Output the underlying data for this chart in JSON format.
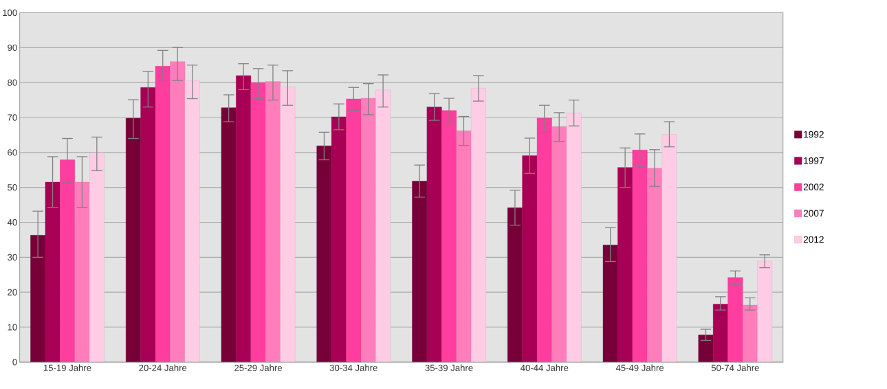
{
  "chart_data": {
    "type": "bar",
    "categories": [
      "15-19 Jahre",
      "20-24 Jahre",
      "25-29 Jahre",
      "30-34 Jahre",
      "35-39 Jahre",
      "40-44 Jahre",
      "45-49 Jahre",
      "50-74 Jahre"
    ],
    "series": [
      {
        "name": "1992",
        "color": "#780038",
        "values": [
          36.3,
          69.8,
          72.8,
          61.9,
          51.8,
          44.2,
          33.5,
          7.8
        ],
        "errors": [
          [
            30,
            43.2
          ],
          [
            64,
            75.1
          ],
          [
            68.8,
            76.5
          ],
          [
            57.9,
            65.8
          ],
          [
            47.2,
            56.4
          ],
          [
            39.2,
            49.2
          ],
          [
            28.8,
            38.5
          ],
          [
            6.2,
            9.4
          ]
        ]
      },
      {
        "name": "1997",
        "color": "#a80054",
        "values": [
          51.5,
          78.6,
          82,
          70.2,
          73,
          59.1,
          55.7,
          16.6
        ],
        "errors": [
          [
            44.3,
            58.8
          ],
          [
            73,
            83.2
          ],
          [
            78,
            85.4
          ],
          [
            66.5,
            73.9
          ],
          [
            69.2,
            76.8
          ],
          [
            54,
            64.1
          ],
          [
            50,
            61.3
          ],
          [
            14.9,
            18.7
          ]
        ]
      },
      {
        "name": "2002",
        "color": "#ff3d9e",
        "values": [
          57.9,
          84.7,
          80,
          75.3,
          72,
          69.8,
          60.7,
          24.2
        ],
        "errors": [
          [
            51.5,
            64
          ],
          [
            80.3,
            89.2
          ],
          [
            75.4,
            84
          ],
          [
            72,
            78.6
          ],
          [
            68.2,
            75.5
          ],
          [
            66,
            73.5
          ],
          [
            56,
            65.3
          ],
          [
            22.2,
            26.1
          ]
        ]
      },
      {
        "name": "2007",
        "color": "#ff7dbb",
        "values": [
          51.5,
          86,
          80.3,
          75.5,
          66.2,
          67.4,
          55.5,
          16.3
        ],
        "errors": [
          [
            44.3,
            58.8
          ],
          [
            80.6,
            90.1
          ],
          [
            75,
            85
          ],
          [
            70.8,
            79.7
          ],
          [
            62,
            70.3
          ],
          [
            63.2,
            71.4
          ],
          [
            50.3,
            60.8
          ],
          [
            14.9,
            18.4
          ]
        ]
      },
      {
        "name": "2012",
        "color": "#ffcce5",
        "values": [
          59.9,
          80.5,
          78.8,
          77.9,
          78.4,
          71.3,
          65.2,
          28.9
        ],
        "errors": [
          [
            54.8,
            64.4
          ],
          [
            75.4,
            85
          ],
          [
            73.5,
            83.4
          ],
          [
            73,
            82.2
          ],
          [
            74.7,
            82
          ],
          [
            67.6,
            75
          ],
          [
            61.6,
            68.8
          ],
          [
            27,
            30.7
          ]
        ]
      }
    ],
    "ylim": [
      0,
      100
    ],
    "yticks": [
      0,
      10,
      20,
      30,
      40,
      50,
      60,
      70,
      80,
      90,
      100
    ],
    "grid": "y",
    "legend": "right"
  }
}
